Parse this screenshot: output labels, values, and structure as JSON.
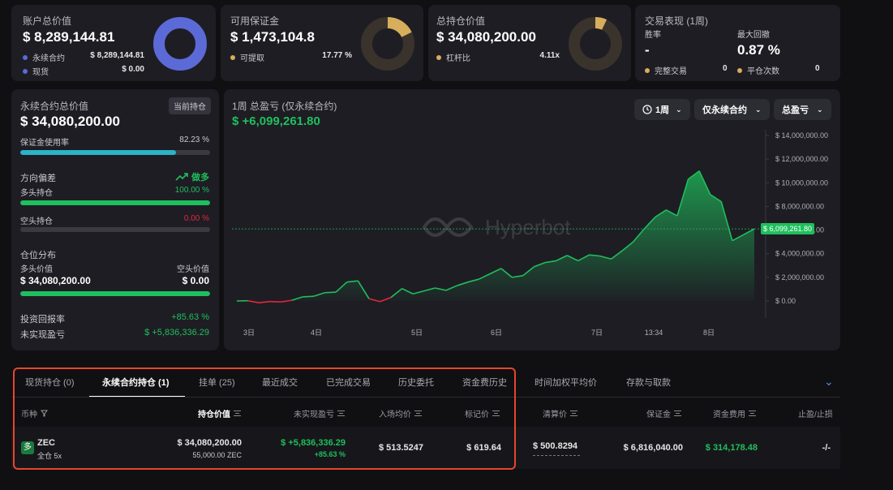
{
  "summary": {
    "account": {
      "label": "账户总价值",
      "value": "$ 8,289,144.81",
      "legend": [
        {
          "label": "永续合约",
          "value": "$ 8,289,144.81"
        },
        {
          "label": "现货",
          "value": "$ 0.00"
        }
      ],
      "donut_fill": 1.0
    },
    "margin": {
      "label": "可用保证金",
      "value": "$ 1,473,104.8",
      "legend": [
        {
          "label": "可提取",
          "value": "17.77 %"
        }
      ],
      "donut_fill": 0.1777
    },
    "position_value": {
      "label": "总持仓价值",
      "value": "$ 34,080,200.00",
      "legend": [
        {
          "label": "杠杆比",
          "value": "4.11x"
        }
      ],
      "donut_fill": 0.07
    },
    "performance": {
      "label": "交易表现 (1周)",
      "win_rate_label": "胜率",
      "win_rate": "-",
      "max_drawdown_label": "最大回撤",
      "max_drawdown": "0.87 %",
      "completed_label": "完整交易",
      "completed": "0",
      "closes_label": "平仓次数",
      "closes": "0"
    }
  },
  "perp_panel": {
    "title": "永续合约总价值",
    "badge": "当前持仓",
    "value": "$ 34,080,200.00",
    "margin_usage_label": "保证金使用率",
    "margin_usage": "82.23 %",
    "margin_usage_fraction": 0.8223,
    "direction_label": "方向偏差",
    "direction_value": "做多",
    "long_label": "多头持仓",
    "long_pct": "100.00 %",
    "long_fraction": 1.0,
    "short_label": "空头持仓",
    "short_pct": "0.00 %",
    "short_fraction": 0.0,
    "dist_label": "仓位分布",
    "long_value_label": "多头价值",
    "long_value": "$ 34,080,200.00",
    "short_value_label": "空头价值",
    "short_value": "$ 0.00",
    "roi_label": "投资回报率",
    "roi": "+85.63 %",
    "upnl_label": "未实现盈亏",
    "upnl": "$ +5,836,336.29"
  },
  "chart_panel": {
    "title": "1周 总盈亏 (仅永续合约)",
    "value": "$ +6,099,261.80",
    "filters": {
      "period": "1周",
      "scope": "仅永续合约",
      "metric": "总盈亏"
    },
    "watermark": "Hyperbot",
    "current_tag": "$ 6,099,261.80"
  },
  "chart_data": {
    "type": "area",
    "ylim": [
      0,
      14000000
    ],
    "yticks": [
      "14,000,000.00",
      "12,000,000.00",
      "10,000,000.00",
      "8,000,000.00",
      "6,000,000.00",
      "4,000,000.00",
      "2,000,000.00",
      "0.00"
    ],
    "xticks": [
      "3日",
      "4日",
      "5日",
      "6日",
      "7日",
      "13:34",
      "8日"
    ],
    "values": [
      0,
      20000,
      -150000,
      -50000,
      -80000,
      60000,
      350000,
      400000,
      700000,
      750000,
      1600000,
      1700000,
      200000,
      -50000,
      300000,
      1050000,
      600000,
      850000,
      1100000,
      900000,
      1300000,
      1600000,
      1850000,
      2300000,
      2750000,
      2000000,
      2150000,
      2900000,
      3250000,
      3400000,
      3850000,
      3400000,
      3900000,
      3800000,
      3550000,
      4250000,
      5000000,
      6100000,
      7100000,
      7700000,
      7200000,
      10300000,
      11000000,
      9000000,
      8400000,
      5100000,
      5600000,
      6099261.8
    ]
  },
  "tabs": [
    "现货持仓 (0)",
    "永续合约持仓 (1)",
    "挂单 (25)",
    "最近成交",
    "已完成交易",
    "历史委托",
    "资金费历史",
    "时间加权平均价",
    "存款与取款"
  ],
  "table": {
    "headers": [
      "币种",
      "持仓价值",
      "未实现盈亏",
      "入场均价",
      "标记价",
      "清算价",
      "保证金",
      "资金费用",
      "止盈/止损"
    ],
    "row": {
      "side_badge": "多",
      "coin": "ZEC",
      "mode": "全仓 5x",
      "position_value": "$ 34,080,200.00",
      "position_size": "55,000.00 ZEC",
      "upnl": "$ +5,836,336.29",
      "upnl_pct": "+85.63 %",
      "entry": "$ 513.5247",
      "mark": "$ 619.64",
      "liq": "$ 500.8294",
      "margin": "$ 6,816,040.00",
      "funding": "$ 314,178.48",
      "tpsl": "-/-"
    }
  },
  "colors": {
    "green": "#1fbf5c",
    "red": "#e0283c",
    "blue": "#5b6ad6",
    "gold": "#d6ae5c",
    "cyan": "#2cb3c8",
    "highlight": "#e8452c"
  }
}
